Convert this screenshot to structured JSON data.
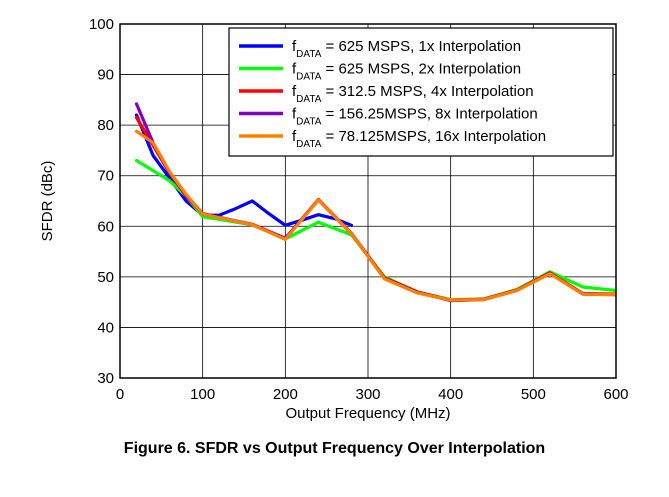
{
  "caption": "Figure 6. SFDR vs Output Frequency Over Interpolation",
  "chart_data": {
    "type": "line",
    "title": "",
    "xlabel": "Output Frequency (MHz)",
    "ylabel": "SFDR (dBc)",
    "xlim": [
      0,
      600
    ],
    "ylim": [
      30,
      100
    ],
    "xticks": [
      0,
      100,
      200,
      300,
      400,
      500,
      600
    ],
    "yticks": [
      30,
      40,
      50,
      60,
      70,
      80,
      90,
      100
    ],
    "grid": true,
    "legend": "top-right",
    "series": [
      {
        "name_prefix": "f",
        "name_sub": "DATA",
        "name_suffix": " = 625 MSPS, 1x Interpolation",
        "color": "#0000ff",
        "points": [
          [
            20,
            82
          ],
          [
            40,
            74
          ],
          [
            60,
            69.5
          ],
          [
            80,
            65
          ],
          [
            100,
            62.2
          ],
          [
            120,
            62.2
          ],
          [
            140,
            63.5
          ],
          [
            160,
            65
          ],
          [
            180,
            62.5
          ],
          [
            200,
            60.2
          ],
          [
            220,
            61.2
          ],
          [
            240,
            62.3
          ],
          [
            260,
            61.5
          ],
          [
            280,
            60.2
          ]
        ]
      },
      {
        "name_prefix": "f",
        "name_sub": "DATA",
        "name_suffix": " = 625 MSPS, 2x Interpolation",
        "color": "#00ff00",
        "points": [
          [
            20,
            73
          ],
          [
            60,
            69
          ],
          [
            80,
            66
          ],
          [
            100,
            61.9
          ],
          [
            160,
            60.3
          ],
          [
            200,
            57.5
          ],
          [
            240,
            60.8
          ],
          [
            280,
            58.3
          ],
          [
            320,
            50
          ],
          [
            360,
            47
          ],
          [
            400,
            45.5
          ],
          [
            440,
            45.6
          ],
          [
            480,
            47.5
          ],
          [
            520,
            51
          ],
          [
            560,
            48
          ],
          [
            600,
            47.3
          ]
        ]
      },
      {
        "name_prefix": "f",
        "name_sub": "DATA",
        "name_suffix": " = 312.5 MSPS, 4x Interpolation",
        "color": "#ff0000",
        "points": [
          [
            20,
            81.5
          ],
          [
            40,
            76
          ],
          [
            60,
            70.5
          ],
          [
            80,
            66
          ],
          [
            100,
            62.4
          ],
          [
            160,
            60.4
          ],
          [
            200,
            57.6
          ],
          [
            240,
            65.3
          ],
          [
            280,
            58.6
          ],
          [
            320,
            49.8
          ],
          [
            360,
            47
          ],
          [
            400,
            45.4
          ],
          [
            440,
            45.6
          ],
          [
            480,
            47.4
          ],
          [
            520,
            50.8
          ],
          [
            560,
            46.7
          ],
          [
            600,
            46.6
          ]
        ]
      },
      {
        "name_prefix": "f",
        "name_sub": "DATA",
        "name_suffix": " = 156.25MSPS, 8x Interpolation",
        "color": "#8000c0",
        "points": [
          [
            20,
            84.2
          ],
          [
            40,
            76.5
          ],
          [
            60,
            70.6
          ],
          [
            80,
            66.2
          ],
          [
            100,
            62.5
          ],
          [
            160,
            60.3
          ],
          [
            200,
            57.6
          ],
          [
            240,
            65.2
          ],
          [
            280,
            58.5
          ],
          [
            320,
            49.7
          ],
          [
            360,
            46.9
          ],
          [
            400,
            45.3
          ],
          [
            440,
            45.5
          ],
          [
            480,
            47.3
          ],
          [
            520,
            50.7
          ],
          [
            560,
            46.6
          ],
          [
            600,
            46.5
          ]
        ]
      },
      {
        "name_prefix": "f",
        "name_sub": "DATA",
        "name_suffix": " = 78.125MSPS, 16x Interpolation",
        "color": "#ff8000",
        "points": [
          [
            20,
            78.8
          ],
          [
            40,
            76.5
          ],
          [
            60,
            70.8
          ],
          [
            80,
            66.3
          ],
          [
            100,
            62.4
          ],
          [
            160,
            60.3
          ],
          [
            200,
            57.4
          ],
          [
            240,
            65.2
          ],
          [
            280,
            58.5
          ],
          [
            320,
            49.6
          ],
          [
            360,
            46.8
          ],
          [
            400,
            45.4
          ],
          [
            440,
            45.5
          ],
          [
            480,
            47.3
          ],
          [
            520,
            50.6
          ],
          [
            560,
            46.6
          ],
          [
            600,
            46.5
          ]
        ]
      }
    ]
  }
}
